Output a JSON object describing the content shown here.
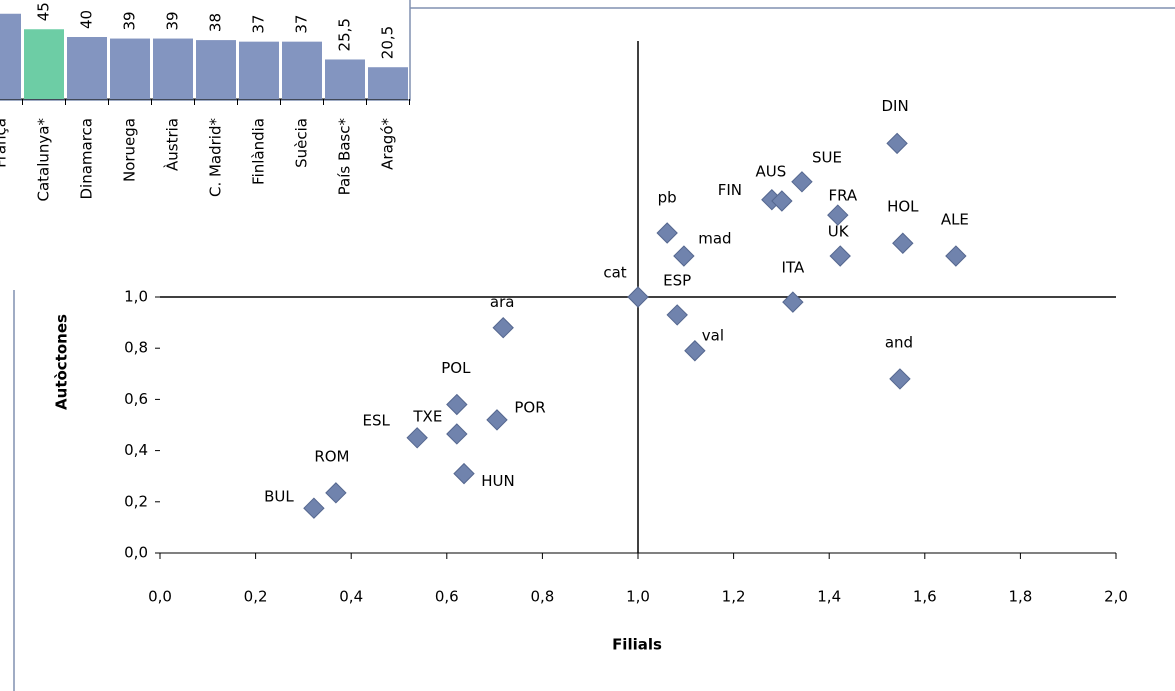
{
  "chart_data": [
    {
      "type": "scatter",
      "x_label": "Filials",
      "y_label": "Autòctones",
      "point_labels": [
        "DIN",
        "SUE",
        "FIN",
        "AUS",
        "FRA",
        "HOL",
        "ALE",
        "UK",
        "ITA",
        "and",
        "pb",
        "mad",
        "cat",
        "ESP",
        "val",
        "ara",
        "POL",
        "POR",
        "TXE",
        "ESL",
        "HUN",
        "ROM",
        "BUL"
      ],
      "x": [
        1.542,
        1.343,
        1.28,
        1.301,
        1.418,
        1.554,
        1.665,
        1.423,
        1.324,
        1.548,
        1.061,
        1.096,
        1.0,
        1.082,
        1.119,
        0.718,
        0.621,
        0.705,
        0.621,
        0.538,
        0.636,
        0.368,
        0.322
      ],
      "values": [
        1.6,
        1.45,
        1.38,
        1.375,
        1.32,
        1.21,
        1.16,
        1.16,
        0.98,
        0.68,
        1.25,
        1.16,
        1.0,
        0.93,
        0.79,
        0.88,
        0.58,
        0.52,
        0.465,
        0.45,
        0.31,
        0.235,
        0.175
      ],
      "color": "#7083ad",
      "xlim": [
        0,
        2.0
      ],
      "ylim": [
        0,
        2.0
      ],
      "xticks": [
        {
          "value": 0,
          "label": "0,0"
        },
        {
          "value": 0.2,
          "label": "0,2"
        },
        {
          "value": 0.4,
          "label": "0,4"
        },
        {
          "value": 0.6,
          "label": "0,6"
        },
        {
          "value": 0.8,
          "label": "0,8"
        },
        {
          "value": 1.0,
          "label": "1,0"
        },
        {
          "value": 1.2,
          "label": "1,2"
        },
        {
          "value": 1.4,
          "label": "1,4"
        },
        {
          "value": 1.6,
          "label": "1,6"
        },
        {
          "value": 1.8,
          "label": "1,8"
        },
        {
          "value": 2.0,
          "label": "2,0"
        }
      ],
      "yticks": [
        {
          "value": 0,
          "label": "0,0"
        },
        {
          "value": 0.2,
          "label": "0,2"
        },
        {
          "value": 0.4,
          "label": "0,4"
        },
        {
          "value": 0.6,
          "label": "0,6"
        },
        {
          "value": 0.8,
          "label": "0,8"
        },
        {
          "value": 1.0,
          "label": "1,0"
        }
      ]
    },
    {
      "type": "bar",
      "categories": [
        "França",
        "Catalunya*",
        "Dinamarca",
        "Noruega",
        "Àustria",
        "C. Madrid*",
        "Finlàndia",
        "Suècia",
        "País Basc*",
        "Aragó*"
      ],
      "values": [
        55,
        45,
        40,
        39,
        39,
        38,
        37,
        37,
        25.5,
        20.5
      ],
      "value_labels": [
        null,
        "45",
        "40",
        "39",
        "39",
        "38",
        "37",
        "37",
        "25,5",
        "20,5"
      ],
      "color": "#8395c0",
      "highlight_color": "#6dcda5",
      "highlight": "Catalunya*"
    }
  ]
}
